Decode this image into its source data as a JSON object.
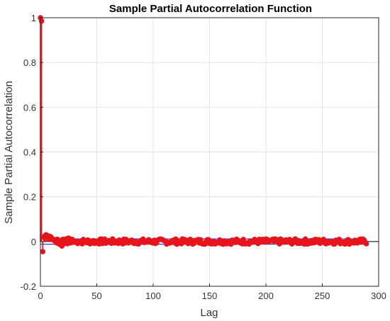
{
  "chart_data": {
    "type": "scatter",
    "title": "Sample Partial Autocorrelation Function",
    "xlabel": "Lag",
    "ylabel": "Sample Partial Autocorrelation",
    "xlim": [
      0,
      300
    ],
    "ylim": [
      -0.2,
      1
    ],
    "xticks": [
      "0",
      "50",
      "100",
      "150",
      "200",
      "250",
      "300"
    ],
    "yticks": [
      "-0.2",
      "0",
      "0.2",
      "0.4",
      "0.6",
      "0.8",
      "1"
    ],
    "xtick_values": [
      0,
      50,
      100,
      150,
      200,
      250,
      300
    ],
    "ytick_values": [
      -0.2,
      0,
      0.2,
      0.4,
      0.6,
      0.8,
      1
    ],
    "grid": true,
    "max_lag": 289,
    "confidence_bound": 0.012,
    "colors": {
      "stem": "#e8141c",
      "bounds": "#3a3ad8",
      "grid": "#e4e4e4",
      "axis": "#262626",
      "zero_line": "#000000"
    },
    "lags": [
      0,
      1,
      2,
      3,
      4,
      5,
      6,
      7,
      8,
      9,
      10,
      11,
      12,
      13,
      14,
      15,
      16,
      17,
      18,
      19,
      20,
      21,
      22,
      23,
      24,
      25,
      26,
      27,
      28,
      29,
      30
    ],
    "values": [
      1.0,
      0.985,
      -0.045,
      0.02,
      0.025,
      0.03,
      0.02,
      0.025,
      0.018,
      0.022,
      0.015,
      0.01,
      0.005,
      0.008,
      -0.005,
      0.01,
      -0.01,
      0.005,
      -0.015,
      -0.02,
      0.01,
      0.005,
      -0.008,
      0.012,
      -0.01,
      0.015,
      0.008,
      -0.006,
      0.01,
      0.004,
      -0.003
    ],
    "noise_amplitude": 0.012
  }
}
